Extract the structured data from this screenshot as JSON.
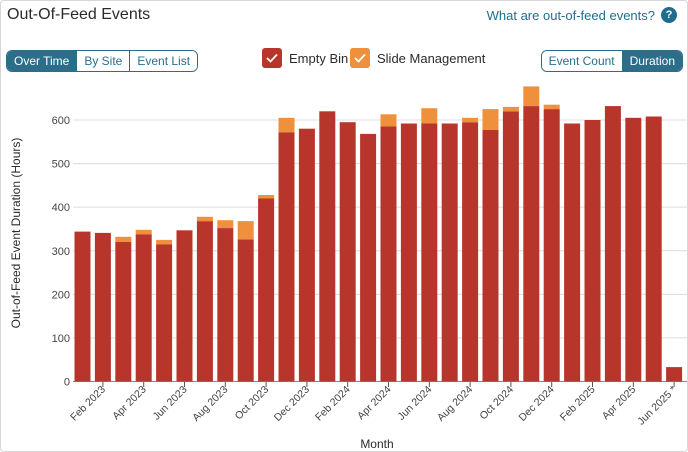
{
  "header": {
    "title": "Out-Of-Feed Events",
    "help_link": "What are out-of-feed events?",
    "help_icon": "?"
  },
  "view_toggle": [
    {
      "label": "Over Time",
      "active": true
    },
    {
      "label": "By Site",
      "active": false
    },
    {
      "label": "Event List",
      "active": false
    }
  ],
  "metric_toggle": [
    {
      "label": "Event Count",
      "active": false
    },
    {
      "label": "Duration",
      "active": true
    }
  ],
  "legend": [
    {
      "label": "Empty Bin",
      "color": "#b8352b"
    },
    {
      "label": "Slide Management",
      "color": "#ef913c"
    }
  ],
  "chart_data": {
    "type": "bar",
    "stacked": true,
    "title": "",
    "xlabel": "Month",
    "ylabel": "Out-of-Feed Event Duration (Hours)",
    "ylim": [
      0,
      700
    ],
    "yticks": [
      0,
      100,
      200,
      300,
      400,
      500,
      600
    ],
    "grid": true,
    "categories": [
      "Jan 2023",
      "Feb 2023",
      "Mar 2023",
      "Apr 2023",
      "May 2023",
      "Jun 2023",
      "Jul 2023",
      "Aug 2023",
      "Sep 2023",
      "Oct 2023",
      "Nov 2023",
      "Dec 2023",
      "Jan 2024",
      "Feb 2024",
      "Mar 2024",
      "Apr 2024",
      "May 2024",
      "Jun 2024",
      "Jul 2024",
      "Aug 2024",
      "Sep 2024",
      "Oct 2024",
      "Nov 2024",
      "Dec 2024",
      "Jan 2025",
      "Feb 2025",
      "Mar 2025",
      "Apr 2025",
      "May 2025",
      "Jun 2025"
    ],
    "tick_labels": [
      "",
      "Feb 2023",
      "",
      "Apr 2023",
      "",
      "Jun 2023",
      "",
      "Aug 2023",
      "",
      "Oct 2023",
      "",
      "Dec 2023",
      "",
      "Feb 2024",
      "",
      "Apr 2024",
      "",
      "Jun 2024",
      "",
      "Aug 2024",
      "",
      "Oct 2024",
      "",
      "Dec 2024",
      "",
      "Feb 2025",
      "",
      "Apr 2025",
      "",
      "Jun 2025 *"
    ],
    "series": [
      {
        "name": "Empty Bin",
        "color": "#b8352b",
        "values": [
          344,
          341,
          320,
          338,
          315,
          347,
          368,
          352,
          326,
          420,
          572,
          580,
          620,
          595,
          568,
          585,
          592,
          592,
          592,
          595,
          577,
          620,
          632,
          625,
          592,
          600,
          632,
          605,
          608,
          33
        ]
      },
      {
        "name": "Slide Management",
        "color": "#ef913c",
        "values": [
          0,
          0,
          12,
          10,
          10,
          0,
          10,
          18,
          42,
          8,
          33,
          0,
          0,
          0,
          0,
          28,
          0,
          35,
          0,
          10,
          48,
          10,
          45,
          10,
          0,
          0,
          0,
          0,
          0,
          0
        ]
      }
    ]
  }
}
